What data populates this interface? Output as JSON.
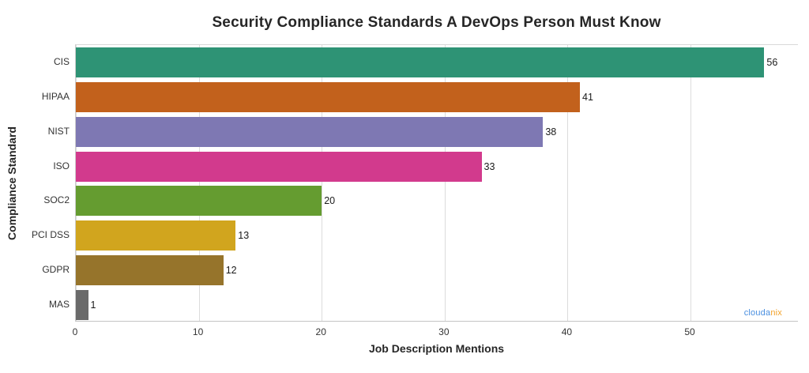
{
  "chart_data": {
    "type": "bar",
    "orientation": "horizontal",
    "title": "Security Compliance Standards A DevOps Person Must Know",
    "xlabel": "Job Description Mentions",
    "ylabel": "Compliance Standard",
    "categories": [
      "CIS",
      "HIPAA",
      "NIST",
      "ISO",
      "SOC2",
      "PCI DSS",
      "GDPR",
      "MAS"
    ],
    "values": [
      56,
      41,
      38,
      33,
      20,
      13,
      12,
      1
    ],
    "bar_colors": [
      "#2e9375",
      "#c2611c",
      "#7e78b3",
      "#d23a8d",
      "#659c30",
      "#d1a51e",
      "#96742b",
      "#6a6a6a"
    ],
    "x_ticks": [
      0,
      10,
      20,
      30,
      40,
      50
    ],
    "xlim": [
      0,
      58.8
    ],
    "grid": "vertical-only",
    "legend": "none",
    "background": "#ffffff"
  },
  "watermark": {
    "part1": "clouda",
    "part2": "nix",
    "color1": "#4a8fe0",
    "color2": "#f2a22a"
  },
  "colors": {
    "gridline": "#dcdcdc",
    "spine": "#cccccc",
    "title_text": "#262626",
    "tick_text": "#333333",
    "value_text": "#1a1a1a"
  }
}
